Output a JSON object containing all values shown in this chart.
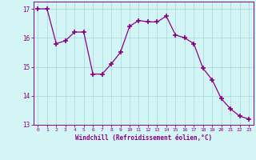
{
  "x": [
    0,
    1,
    2,
    3,
    4,
    5,
    6,
    7,
    8,
    9,
    10,
    11,
    12,
    13,
    14,
    15,
    16,
    17,
    18,
    19,
    20,
    21,
    22,
    23
  ],
  "y": [
    17.0,
    17.0,
    15.8,
    15.9,
    16.2,
    16.2,
    14.75,
    14.75,
    15.1,
    15.5,
    16.4,
    16.6,
    16.55,
    16.55,
    16.75,
    16.1,
    16.0,
    15.8,
    14.95,
    14.55,
    13.9,
    13.55,
    13.3,
    13.2
  ],
  "line_color": "#880088",
  "marker": "+",
  "marker_size": 4,
  "marker_lw": 1.2,
  "bg_color": "#d4f5f5",
  "grid_color": "#aadddd",
  "xlabel": "Windchill (Refroidissement éolien,°C)",
  "xlabel_color": "#880088",
  "tick_color": "#880088",
  "ylim": [
    13.0,
    17.25
  ],
  "xlim": [
    -0.5,
    23.5
  ],
  "yticks": [
    13,
    14,
    15,
    16,
    17
  ],
  "xticks": [
    0,
    1,
    2,
    3,
    4,
    5,
    6,
    7,
    8,
    9,
    10,
    11,
    12,
    13,
    14,
    15,
    16,
    17,
    18,
    19,
    20,
    21,
    22,
    23
  ],
  "xtick_labels": [
    "0",
    "1",
    "2",
    "3",
    "4",
    "5",
    "6",
    "7",
    "8",
    "9",
    "10",
    "11",
    "12",
    "13",
    "14",
    "15",
    "16",
    "17",
    "18",
    "19",
    "20",
    "21",
    "22",
    "23"
  ]
}
